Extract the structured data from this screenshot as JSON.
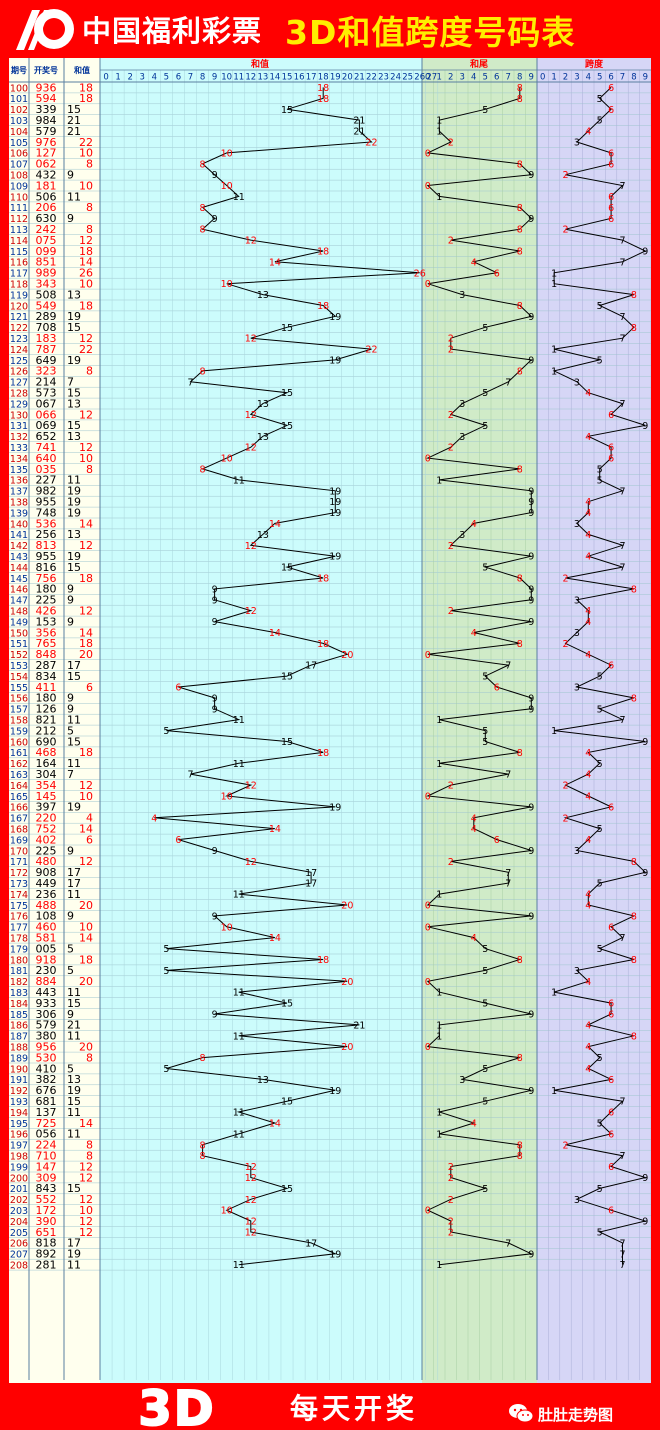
{
  "header": {
    "brand": "中国福利彩票",
    "title": "3D和值跨度号码表",
    "logo_icon": "welfare-lottery-logo-icon"
  },
  "columns": {
    "issue": "期号",
    "number": "开奖号",
    "sum": "和值",
    "sum_chart": "和值",
    "tail_chart": "和尾",
    "span_chart": "跨度"
  },
  "footer": {
    "logo_text": "3D",
    "slogan": "每天开奖",
    "wechat_icon": "wechat-icon",
    "account": "肚肚走势图"
  },
  "colors": {
    "background": "#ff0000",
    "title": "#ffee00",
    "sum_area": "#ccfcfc",
    "tail_area": "#d0ebc8",
    "span_area": "#d6d6f6",
    "highlight": "#ff0000"
  },
  "chart_data": {
    "type": "table",
    "series": [
      {
        "name": "和值",
        "range": [
          0,
          27
        ]
      },
      {
        "name": "和尾",
        "range": [
          0,
          9
        ]
      },
      {
        "name": "跨度",
        "range": [
          0,
          9
        ]
      }
    ],
    "rows": [
      [
        "100",
        "936",
        18,
        8,
        6
      ],
      [
        "101",
        "594",
        18,
        8,
        5
      ],
      [
        "102",
        "339",
        15,
        5,
        6
      ],
      [
        "103",
        "984",
        21,
        1,
        5
      ],
      [
        "104",
        "579",
        21,
        1,
        4
      ],
      [
        "105",
        "976",
        22,
        2,
        3
      ],
      [
        "106",
        "127",
        10,
        0,
        6
      ],
      [
        "107",
        "062",
        8,
        8,
        6
      ],
      [
        "108",
        "432",
        9,
        9,
        2
      ],
      [
        "109",
        "181",
        10,
        0,
        7
      ],
      [
        "110",
        "506",
        11,
        1,
        6
      ],
      [
        "111",
        "206",
        8,
        8,
        6
      ],
      [
        "112",
        "630",
        9,
        9,
        6
      ],
      [
        "113",
        "242",
        8,
        8,
        2
      ],
      [
        "114",
        "075",
        12,
        2,
        7
      ],
      [
        "115",
        "099",
        18,
        8,
        9
      ],
      [
        "116",
        "851",
        14,
        4,
        7
      ],
      [
        "117",
        "989",
        26,
        6,
        1
      ],
      [
        "118",
        "343",
        10,
        0,
        1
      ],
      [
        "119",
        "508",
        13,
        3,
        8
      ],
      [
        "120",
        "549",
        18,
        8,
        5
      ],
      [
        "121",
        "289",
        19,
        9,
        7
      ],
      [
        "122",
        "708",
        15,
        5,
        8
      ],
      [
        "123",
        "183",
        12,
        2,
        7
      ],
      [
        "124",
        "787",
        22,
        2,
        1
      ],
      [
        "125",
        "649",
        19,
        9,
        5
      ],
      [
        "126",
        "323",
        8,
        8,
        1
      ],
      [
        "127",
        "214",
        7,
        7,
        3
      ],
      [
        "128",
        "573",
        15,
        5,
        4
      ],
      [
        "129",
        "067",
        13,
        3,
        7
      ],
      [
        "130",
        "066",
        12,
        2,
        6
      ],
      [
        "131",
        "069",
        15,
        5,
        9
      ],
      [
        "132",
        "652",
        13,
        3,
        4
      ],
      [
        "133",
        "741",
        12,
        2,
        6
      ],
      [
        "134",
        "640",
        10,
        0,
        6
      ],
      [
        "135",
        "035",
        8,
        8,
        5
      ],
      [
        "136",
        "227",
        11,
        1,
        5
      ],
      [
        "137",
        "982",
        19,
        9,
        7
      ],
      [
        "138",
        "955",
        19,
        9,
        4
      ],
      [
        "139",
        "748",
        19,
        9,
        4
      ],
      [
        "140",
        "536",
        14,
        4,
        3
      ],
      [
        "141",
        "256",
        13,
        3,
        4
      ],
      [
        "142",
        "813",
        12,
        2,
        7
      ],
      [
        "143",
        "955",
        19,
        9,
        4
      ],
      [
        "144",
        "816",
        15,
        5,
        7
      ],
      [
        "145",
        "756",
        18,
        8,
        2
      ],
      [
        "146",
        "180",
        9,
        9,
        8
      ],
      [
        "147",
        "225",
        9,
        9,
        3
      ],
      [
        "148",
        "426",
        12,
        2,
        4
      ],
      [
        "149",
        "153",
        9,
        9,
        4
      ],
      [
        "150",
        "356",
        14,
        4,
        3
      ],
      [
        "151",
        "765",
        18,
        8,
        2
      ],
      [
        "152",
        "848",
        20,
        0,
        4
      ],
      [
        "153",
        "287",
        17,
        7,
        6
      ],
      [
        "154",
        "834",
        15,
        5,
        5
      ],
      [
        "155",
        "411",
        6,
        6,
        3
      ],
      [
        "156",
        "180",
        9,
        9,
        8
      ],
      [
        "157",
        "126",
        9,
        9,
        5
      ],
      [
        "158",
        "821",
        11,
        1,
        7
      ],
      [
        "159",
        "212",
        5,
        5,
        1
      ],
      [
        "160",
        "690",
        15,
        5,
        9
      ],
      [
        "161",
        "468",
        18,
        8,
        4
      ],
      [
        "162",
        "164",
        11,
        1,
        5
      ],
      [
        "163",
        "304",
        7,
        7,
        4
      ],
      [
        "164",
        "354",
        12,
        2,
        2
      ],
      [
        "165",
        "145",
        10,
        0,
        4
      ],
      [
        "166",
        "397",
        19,
        9,
        6
      ],
      [
        "167",
        "220",
        4,
        4,
        2
      ],
      [
        "168",
        "752",
        14,
        4,
        5
      ],
      [
        "169",
        "402",
        6,
        6,
        4
      ],
      [
        "170",
        "225",
        9,
        9,
        3
      ],
      [
        "171",
        "480",
        12,
        2,
        8
      ],
      [
        "172",
        "908",
        17,
        7,
        9
      ],
      [
        "173",
        "449",
        17,
        7,
        5
      ],
      [
        "174",
        "236",
        11,
        1,
        4
      ],
      [
        "175",
        "488",
        20,
        0,
        4
      ],
      [
        "176",
        "108",
        9,
        9,
        8
      ],
      [
        "177",
        "460",
        10,
        0,
        6
      ],
      [
        "178",
        "581",
        14,
        4,
        7
      ],
      [
        "179",
        "005",
        5,
        5,
        5
      ],
      [
        "180",
        "918",
        18,
        8,
        8
      ],
      [
        "181",
        "230",
        5,
        5,
        3
      ],
      [
        "182",
        "884",
        20,
        0,
        4
      ],
      [
        "183",
        "443",
        11,
        1,
        1
      ],
      [
        "184",
        "933",
        15,
        5,
        6
      ],
      [
        "185",
        "306",
        9,
        9,
        6
      ],
      [
        "186",
        "579",
        21,
        1,
        4
      ],
      [
        "187",
        "380",
        11,
        1,
        8
      ],
      [
        "188",
        "956",
        20,
        0,
        4
      ],
      [
        "189",
        "530",
        8,
        8,
        5
      ],
      [
        "190",
        "410",
        5,
        5,
        4
      ],
      [
        "191",
        "382",
        13,
        3,
        6
      ],
      [
        "192",
        "676",
        19,
        9,
        1
      ],
      [
        "193",
        "681",
        15,
        5,
        7
      ],
      [
        "194",
        "137",
        11,
        1,
        6
      ],
      [
        "195",
        "725",
        14,
        4,
        5
      ],
      [
        "196",
        "056",
        11,
        1,
        6
      ],
      [
        "197",
        "224",
        8,
        8,
        2
      ],
      [
        "198",
        "710",
        8,
        8,
        7
      ],
      [
        "199",
        "147",
        12,
        2,
        6
      ],
      [
        "200",
        "309",
        12,
        2,
        9
      ],
      [
        "201",
        "843",
        15,
        5,
        5
      ],
      [
        "202",
        "552",
        12,
        2,
        3
      ],
      [
        "203",
        "172",
        10,
        0,
        6
      ],
      [
        "204",
        "390",
        12,
        2,
        9
      ],
      [
        "205",
        "651",
        12,
        2,
        5
      ],
      [
        "206",
        "818",
        17,
        7,
        7
      ],
      [
        "207",
        "892",
        19,
        9,
        7
      ],
      [
        "208",
        "281",
        11,
        1,
        7
      ]
    ]
  }
}
